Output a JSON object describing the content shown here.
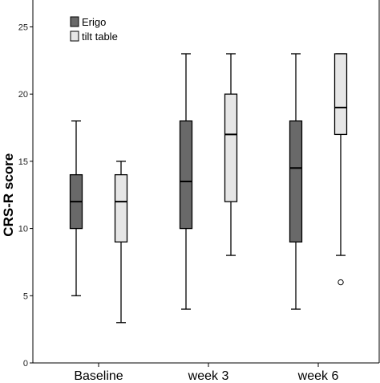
{
  "chart_data": {
    "type": "box",
    "ylabel": "CRS-R score",
    "ylim": [
      0,
      27
    ],
    "yticks": [
      0,
      5,
      10,
      15,
      20,
      25
    ],
    "categories": [
      "Baseline",
      "week 3",
      "week 6"
    ],
    "legend": {
      "placement": "top-left"
    },
    "series": [
      {
        "name": "Erigo",
        "color": "#696969",
        "boxes": [
          {
            "whisker_low": 5,
            "q1": 10,
            "median": 12,
            "q3": 14,
            "whisker_high": 18,
            "outliers": []
          },
          {
            "whisker_low": 4,
            "q1": 10,
            "median": 13.5,
            "q3": 18,
            "whisker_high": 23,
            "outliers": []
          },
          {
            "whisker_low": 4,
            "q1": 9,
            "median": 14.5,
            "q3": 18,
            "whisker_high": 23,
            "outliers": []
          }
        ]
      },
      {
        "name": "tilt table",
        "color": "#e6e6e6",
        "boxes": [
          {
            "whisker_low": 3,
            "q1": 9,
            "median": 12,
            "q3": 14,
            "whisker_high": 15,
            "outliers": []
          },
          {
            "whisker_low": 8,
            "q1": 12,
            "median": 17,
            "q3": 20,
            "whisker_high": 23,
            "outliers": []
          },
          {
            "whisker_low": 8,
            "q1": 17,
            "median": 19,
            "q3": 23,
            "whisker_high": 23,
            "outliers": [
              6
            ]
          }
        ]
      }
    ]
  }
}
